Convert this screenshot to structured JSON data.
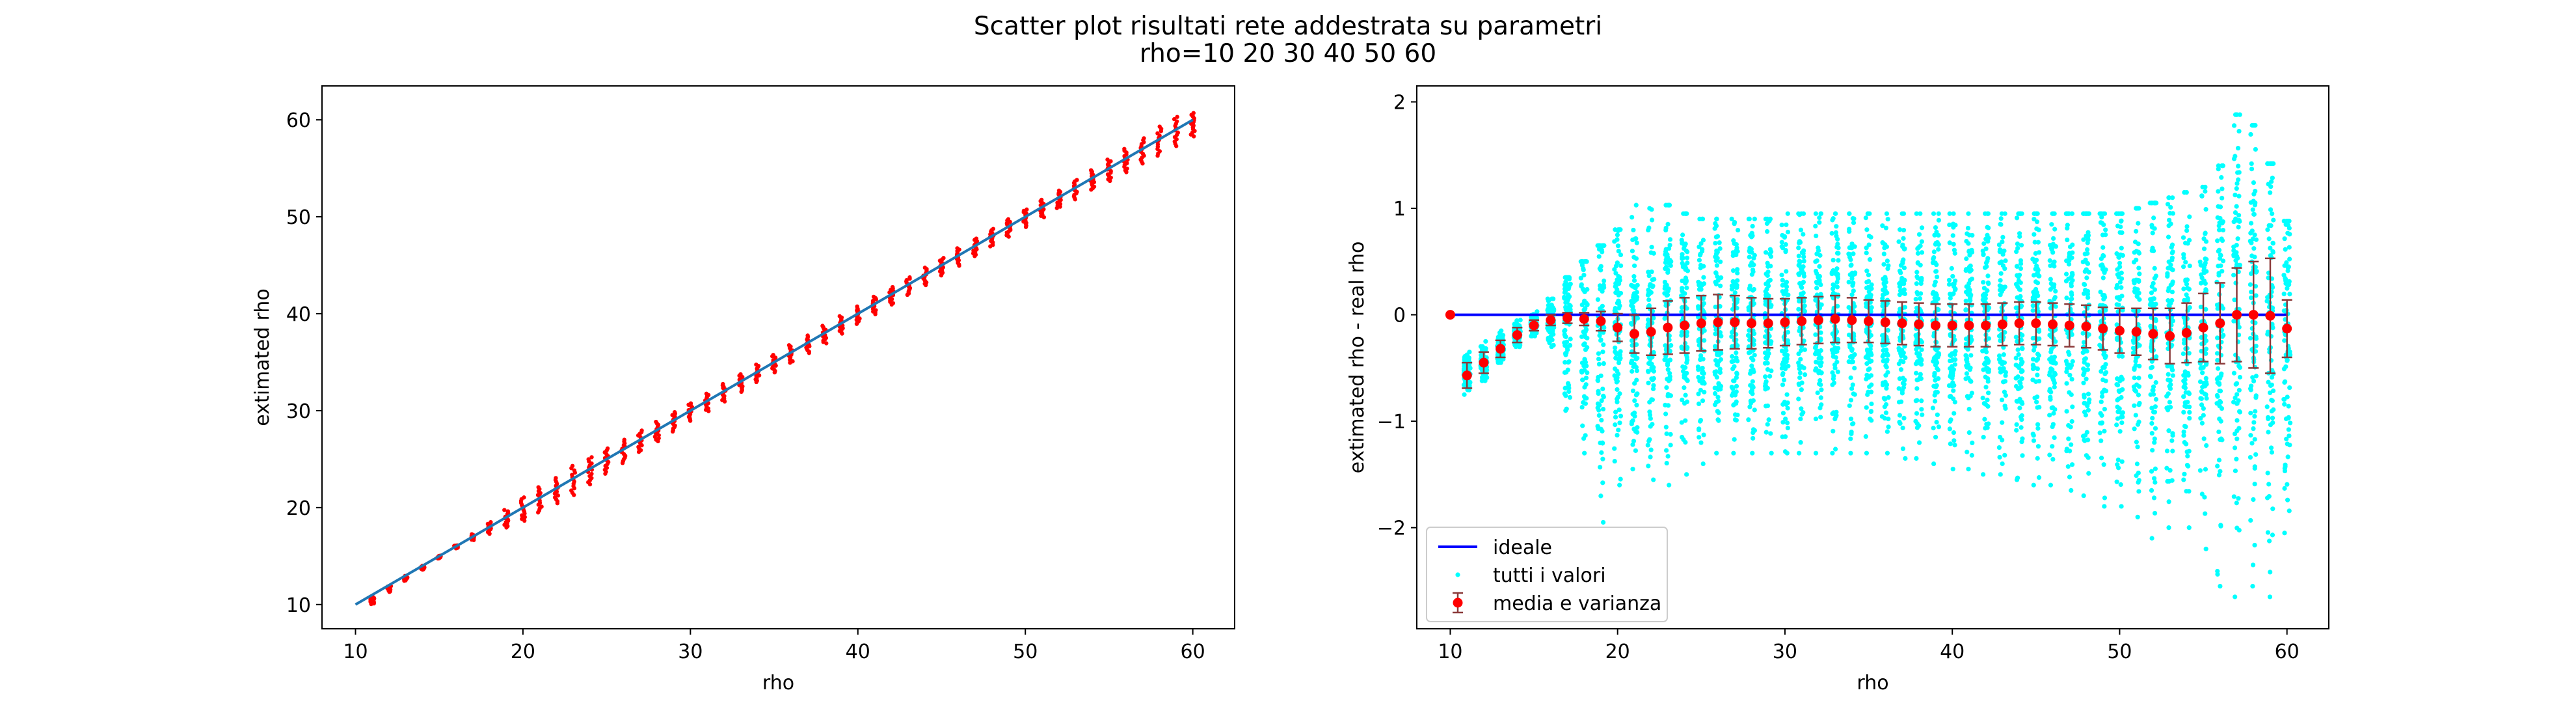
{
  "figure": {
    "title_line1": "Scatter plot risultati rete addestrata su parametri",
    "title_line2": "rho=10 20 30 40 50 60"
  },
  "colors": {
    "ideal_left": "#1f77b4",
    "ideal_right": "#0000ff",
    "points_left": "#ff0000",
    "points_right": "#00ffff",
    "mean": "#ff0000",
    "errorbar": "#8b3a3a"
  },
  "chart_data": [
    {
      "type": "scatter",
      "xlabel": "rho",
      "ylabel": "extimated rho",
      "xlim": [
        8,
        62.5
      ],
      "ylim": [
        7.5,
        63.5
      ],
      "xticks": [
        10,
        20,
        30,
        40,
        50,
        60
      ],
      "yticks": [
        10,
        20,
        30,
        40,
        50,
        60
      ],
      "legend": null,
      "series": [
        {
          "kind": "line",
          "x": [
            10,
            60
          ],
          "y": [
            10,
            60
          ]
        },
        {
          "kind": "vertical_spread",
          "x": [
            11,
            12,
            13,
            14,
            15,
            16,
            17,
            18,
            19,
            20,
            21,
            22,
            23,
            24,
            25,
            26,
            27,
            28,
            29,
            30,
            31,
            32,
            33,
            34,
            35,
            36,
            37,
            38,
            39,
            40,
            41,
            42,
            43,
            44,
            45,
            46,
            47,
            48,
            49,
            50,
            51,
            52,
            53,
            54,
            55,
            56,
            57,
            58,
            59,
            60
          ],
          "center": [
            10.45,
            11.6,
            12.7,
            13.8,
            14.9,
            15.95,
            16.95,
            17.9,
            18.85,
            19.85,
            20.8,
            21.75,
            22.8,
            23.8,
            24.8,
            25.8,
            26.85,
            27.85,
            28.85,
            29.85,
            30.85,
            31.85,
            32.85,
            33.85,
            34.85,
            35.85,
            36.85,
            37.85,
            38.85,
            39.85,
            40.85,
            41.85,
            42.85,
            43.85,
            44.85,
            45.85,
            46.85,
            47.85,
            48.85,
            49.85,
            50.85,
            51.8,
            52.8,
            53.8,
            54.8,
            55.8,
            56.8,
            57.8,
            58.8,
            59.5
          ],
          "halfrange": [
            0.4,
            0.3,
            0.25,
            0.2,
            0.15,
            0.15,
            0.3,
            0.6,
            0.9,
            1.2,
            1.3,
            1.3,
            1.5,
            1.4,
            1.3,
            1.2,
            1.1,
            1.0,
            1.0,
            0.9,
            0.9,
            0.9,
            0.9,
            0.9,
            0.9,
            0.9,
            0.9,
            0.9,
            0.9,
            0.9,
            0.9,
            0.9,
            0.9,
            0.9,
            0.9,
            0.9,
            0.9,
            0.9,
            0.9,
            0.9,
            0.9,
            0.9,
            1.0,
            1.0,
            1.1,
            1.2,
            1.3,
            1.5,
            1.5,
            1.2
          ]
        }
      ]
    },
    {
      "type": "scatter",
      "xlabel": "rho",
      "ylabel": "extimated rho - real rho",
      "xlim": [
        8,
        62.5
      ],
      "ylim": [
        -2.95,
        2.15
      ],
      "xticks": [
        10,
        20,
        30,
        40,
        50,
        60
      ],
      "yticks": [
        -2,
        -1,
        0,
        1,
        2
      ],
      "ytick_labels": [
        "−2",
        "−1",
        "0",
        "1",
        "2"
      ],
      "legend": {
        "position": "lower-left",
        "entries": [
          "ideale",
          "tutti i valori",
          "media e varianza"
        ]
      },
      "ideal": {
        "x": [
          10,
          60
        ],
        "y": [
          0,
          0
        ]
      },
      "x": [
        10,
        11,
        12,
        13,
        14,
        15,
        16,
        17,
        18,
        19,
        20,
        21,
        22,
        23,
        24,
        25,
        26,
        27,
        28,
        29,
        30,
        31,
        32,
        33,
        34,
        35,
        36,
        37,
        38,
        39,
        40,
        41,
        42,
        43,
        44,
        45,
        46,
        47,
        48,
        49,
        50,
        51,
        52,
        53,
        54,
        55,
        56,
        57,
        58,
        59,
        60
      ],
      "mean": [
        0.0,
        -0.57,
        -0.45,
        -0.32,
        -0.19,
        -0.1,
        -0.05,
        -0.03,
        -0.04,
        -0.06,
        -0.12,
        -0.18,
        -0.16,
        -0.12,
        -0.1,
        -0.08,
        -0.07,
        -0.07,
        -0.08,
        -0.08,
        -0.07,
        -0.06,
        -0.05,
        -0.04,
        -0.05,
        -0.06,
        -0.07,
        -0.08,
        -0.09,
        -0.1,
        -0.1,
        -0.1,
        -0.1,
        -0.09,
        -0.08,
        -0.08,
        -0.09,
        -0.1,
        -0.11,
        -0.13,
        -0.15,
        -0.16,
        -0.18,
        -0.2,
        -0.17,
        -0.12,
        -0.08,
        0.0,
        0.0,
        -0.01,
        -0.13
      ],
      "errorbar": [
        0.0,
        0.12,
        0.1,
        0.08,
        0.07,
        0.05,
        0.05,
        0.05,
        0.06,
        0.09,
        0.13,
        0.18,
        0.22,
        0.25,
        0.26,
        0.26,
        0.26,
        0.25,
        0.24,
        0.23,
        0.22,
        0.22,
        0.22,
        0.22,
        0.21,
        0.2,
        0.2,
        0.2,
        0.2,
        0.2,
        0.2,
        0.2,
        0.2,
        0.2,
        0.2,
        0.2,
        0.2,
        0.2,
        0.2,
        0.2,
        0.21,
        0.22,
        0.24,
        0.26,
        0.28,
        0.32,
        0.38,
        0.44,
        0.5,
        0.54,
        0.27
      ],
      "all_values_min": [
        0.0,
        -0.75,
        -0.62,
        -0.45,
        -0.3,
        -0.2,
        -0.3,
        -0.9,
        -1.3,
        -1.95,
        -1.6,
        -1.45,
        -1.55,
        -1.6,
        -1.5,
        -1.4,
        -1.3,
        -1.3,
        -1.3,
        -1.3,
        -1.3,
        -1.3,
        -1.3,
        -1.3,
        -1.3,
        -1.3,
        -1.3,
        -1.35,
        -1.35,
        -1.4,
        -1.45,
        -1.45,
        -1.5,
        -1.5,
        -1.55,
        -1.6,
        -1.6,
        -1.65,
        -1.7,
        -1.8,
        -1.8,
        -1.9,
        -2.1,
        -2.0,
        -2.0,
        -2.2,
        -2.55,
        -2.65,
        -2.55,
        -2.65,
        -2.05
      ],
      "all_values_max": [
        0.0,
        -0.35,
        -0.25,
        -0.15,
        -0.05,
        0.03,
        0.15,
        0.35,
        0.5,
        0.65,
        0.8,
        1.03,
        1.0,
        1.03,
        0.95,
        0.9,
        0.9,
        0.9,
        0.9,
        0.9,
        0.95,
        0.95,
        0.95,
        0.95,
        0.95,
        0.95,
        0.95,
        0.95,
        0.95,
        0.95,
        0.95,
        0.95,
        0.95,
        0.95,
        0.95,
        0.95,
        0.95,
        0.95,
        0.95,
        0.95,
        0.95,
        1.0,
        1.05,
        1.1,
        1.15,
        1.2,
        1.4,
        1.88,
        1.78,
        1.42,
        0.88
      ]
    }
  ]
}
